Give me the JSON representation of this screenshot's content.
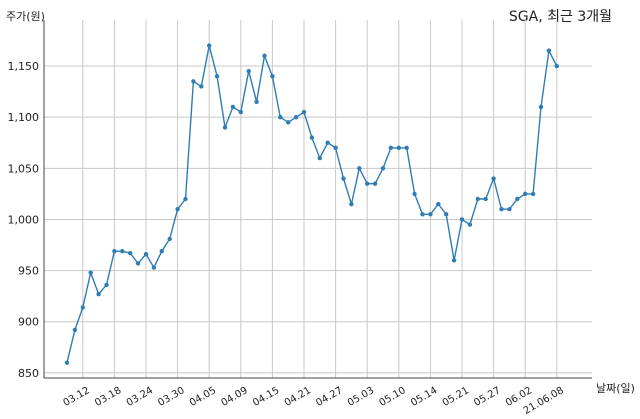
{
  "chart_data": {
    "type": "line",
    "title": "SGA, 최근 3개월",
    "ylabel": "주가(원)",
    "xlabel": "날짜(일)",
    "ylim": [
      845,
      1195
    ],
    "yticks": [
      850,
      900,
      950,
      1000,
      1050,
      1100,
      1150
    ],
    "ytick_labels": [
      "850",
      "900",
      "950",
      "1,000",
      "1,050",
      "1,100",
      "1,150"
    ],
    "xtick_labels": [
      "03.12",
      "03.18",
      "03.24",
      "03.30",
      "04.05",
      "04.09",
      "04.15",
      "04.21",
      "04.27",
      "05.03",
      "05.10",
      "05.14",
      "05.21",
      "05.27",
      "06.02",
      "21.06.08"
    ],
    "xtick_positions": [
      2,
      6,
      10,
      14,
      18,
      22,
      26,
      30,
      34,
      38,
      42,
      46,
      50,
      54,
      58,
      62
    ],
    "grid": true,
    "color": "#2e7db4",
    "series": [
      {
        "name": "",
        "values": [
          860,
          892,
          914,
          948,
          927,
          936,
          969,
          969,
          967,
          957,
          966,
          953,
          969,
          981,
          1010,
          1020,
          1135,
          1130,
          1170,
          1140,
          1090,
          1110,
          1105,
          1145,
          1115,
          1160,
          1140,
          1100,
          1095,
          1100,
          1105,
          1080,
          1060,
          1075,
          1070,
          1040,
          1015,
          1050,
          1035,
          1035,
          1050,
          1070,
          1070,
          1070,
          1025,
          1005,
          1005,
          1015,
          1005,
          960,
          1000,
          995,
          1020,
          1020,
          1040,
          1010,
          1010,
          1020,
          1025,
          1025,
          1110,
          1165,
          1150
        ]
      }
    ]
  }
}
